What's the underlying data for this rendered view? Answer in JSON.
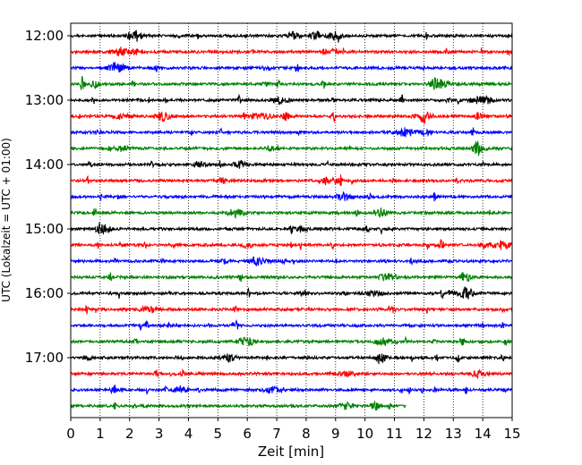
{
  "chart_data": {
    "type": "line",
    "xlabel": "Zeit  [min]",
    "ylabel": "UTC (Lokalzeit = UTC + 01:00)",
    "xlim": [
      0,
      15
    ],
    "x_ticks": [
      0,
      1,
      2,
      3,
      4,
      5,
      6,
      7,
      8,
      9,
      10,
      11,
      12,
      13,
      14,
      15
    ],
    "y_tick_labels": [
      "12:00",
      "13:00",
      "14:00",
      "15:00",
      "16:00",
      "17:00"
    ],
    "trace_interval_min": 15,
    "vertical_grid": true,
    "color_cycle": [
      "#000000",
      "#ff0000",
      "#0000ff",
      "#008000"
    ],
    "traces": [
      {
        "start": "12:00",
        "end_min": 15
      },
      {
        "start": "12:15",
        "end_min": 15
      },
      {
        "start": "12:30",
        "end_min": 15
      },
      {
        "start": "12:45",
        "end_min": 15
      },
      {
        "start": "13:00",
        "end_min": 15
      },
      {
        "start": "13:15",
        "end_min": 15
      },
      {
        "start": "13:30",
        "end_min": 15
      },
      {
        "start": "13:45",
        "end_min": 15
      },
      {
        "start": "14:00",
        "end_min": 15
      },
      {
        "start": "14:15",
        "end_min": 15
      },
      {
        "start": "14:30",
        "end_min": 15
      },
      {
        "start": "14:45",
        "end_min": 15
      },
      {
        "start": "15:00",
        "end_min": 15
      },
      {
        "start": "15:15",
        "end_min": 15
      },
      {
        "start": "15:30",
        "end_min": 15
      },
      {
        "start": "15:45",
        "end_min": 15
      },
      {
        "start": "16:00",
        "end_min": 15
      },
      {
        "start": "16:15",
        "end_min": 15
      },
      {
        "start": "16:30",
        "end_min": 15
      },
      {
        "start": "16:45",
        "end_min": 15
      },
      {
        "start": "17:00",
        "end_min": 15
      },
      {
        "start": "17:15",
        "end_min": 15
      },
      {
        "start": "17:30",
        "end_min": 15
      },
      {
        "start": "17:45",
        "end_min": 11.4
      }
    ]
  }
}
